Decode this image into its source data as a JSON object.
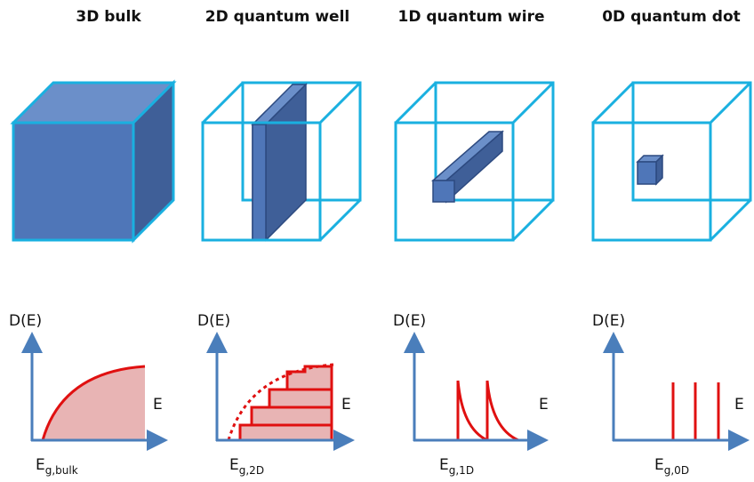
{
  "panels": [
    {
      "title": "3D bulk",
      "y_label": "D(E)",
      "x_label": "E",
      "gap": {
        "symbol": "E",
        "subscript": "g,bulk"
      }
    },
    {
      "title": "2D quantum well",
      "y_label": "D(E)",
      "x_label": "E",
      "gap": {
        "symbol": "E",
        "subscript": "g,2D"
      }
    },
    {
      "title": "1D quantum wire",
      "y_label": "D(E)",
      "x_label": "E",
      "gap": {
        "symbol": "E",
        "subscript": "g,1D"
      }
    },
    {
      "title": "0D quantum dot",
      "y_label": "D(E)",
      "x_label": "E",
      "gap": {
        "symbol": "E",
        "subscript": "g,0D"
      }
    }
  ]
}
